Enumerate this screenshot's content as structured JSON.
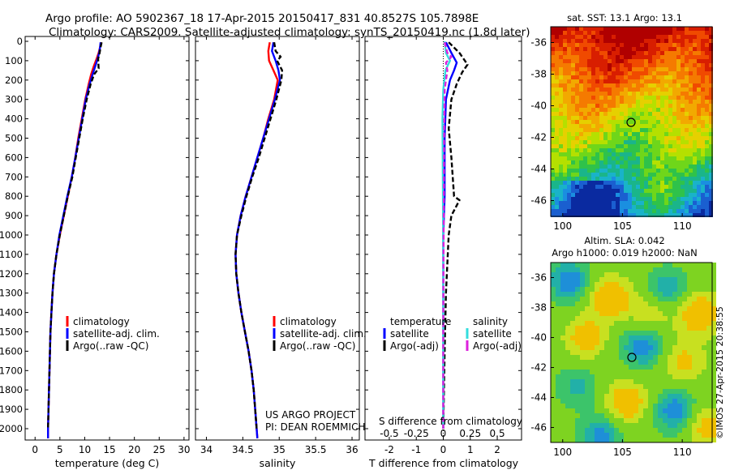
{
  "header": {
    "line1": "Argo profile: AO 5902367_18 17-Apr-2015 20150417_831 40.8527S 105.7898E",
    "line2": "Climatology: CARS2009. Satellite-adjusted climatology: synTS_20150419.nc (1.8d later)"
  },
  "colors": {
    "climatology": "#ff0000",
    "satellite": "#0000ff",
    "argo": "#000000",
    "sal_satellite": "#33dddd",
    "sal_argo": "#dd22dd"
  },
  "panel_text": {
    "project_line1": "US ARGO PROJECT",
    "project_line2": "PI: DEAN ROEMMICH",
    "sdiff_label": "S difference from climatology",
    "sat_sst_title": "sat. SST: 13.1  Argo: 13.1",
    "sla_title1": "Altim. SLA: 0.042",
    "sla_title2": "Argo h1000: 0.019 h2000: NaN",
    "credit": "©IMOS 27-Apr-2015 20:38:55"
  },
  "chart_data": [
    {
      "type": "line",
      "name": "temperature",
      "xlabel": "temperature (deg C)",
      "ylabel": "",
      "xlim": [
        -2,
        31
      ],
      "ylim": [
        2050,
        0
      ],
      "xticks": [
        0,
        5,
        10,
        15,
        20,
        25,
        30
      ],
      "yticks": [
        0,
        100,
        200,
        300,
        400,
        500,
        600,
        700,
        800,
        900,
        1000,
        1100,
        1200,
        1300,
        1400,
        1500,
        1600,
        1700,
        1800,
        1900,
        2000
      ],
      "legend": [
        "climatology",
        "satellite-adj. clim.",
        "Argo(..raw -QC)"
      ],
      "legend_position": "lower-center",
      "series": [
        {
          "name": "climatology",
          "color": "#ff0000",
          "dash": false,
          "points": [
            [
              13.3,
              5
            ],
            [
              13.1,
              30
            ],
            [
              12.8,
              60
            ],
            [
              12.4,
              90
            ],
            [
              11.8,
              130
            ],
            [
              11.3,
              170
            ],
            [
              10.8,
              220
            ],
            [
              10.1,
              300
            ],
            [
              9.4,
              400
            ],
            [
              8.7,
              500
            ],
            [
              8.1,
              600
            ],
            [
              7.4,
              700
            ],
            [
              6.6,
              800
            ],
            [
              5.8,
              900
            ],
            [
              5.0,
              1000
            ],
            [
              4.3,
              1100
            ],
            [
              3.8,
              1200
            ],
            [
              3.5,
              1300
            ],
            [
              3.3,
              1400
            ],
            [
              3.1,
              1500
            ],
            [
              3.0,
              1600
            ],
            [
              2.9,
              1700
            ],
            [
              2.8,
              1800
            ],
            [
              2.7,
              1900
            ],
            [
              2.6,
              2000
            ],
            [
              2.6,
              2050
            ]
          ]
        },
        {
          "name": "satellite-adj. clim.",
          "color": "#0000ff",
          "dash": false,
          "points": [
            [
              13.2,
              5
            ],
            [
              13.1,
              30
            ],
            [
              12.9,
              60
            ],
            [
              12.6,
              90
            ],
            [
              12.1,
              130
            ],
            [
              11.6,
              170
            ],
            [
              11.0,
              220
            ],
            [
              10.2,
              300
            ],
            [
              9.5,
              400
            ],
            [
              8.8,
              500
            ],
            [
              8.1,
              600
            ],
            [
              7.4,
              700
            ],
            [
              6.5,
              800
            ],
            [
              5.7,
              900
            ],
            [
              4.9,
              1000
            ],
            [
              4.3,
              1100
            ],
            [
              3.8,
              1200
            ],
            [
              3.5,
              1300
            ],
            [
              3.3,
              1400
            ],
            [
              3.1,
              1500
            ],
            [
              3.0,
              1600
            ],
            [
              2.9,
              1700
            ],
            [
              2.8,
              1800
            ],
            [
              2.7,
              1900
            ],
            [
              2.6,
              2000
            ],
            [
              2.6,
              2050
            ]
          ]
        },
        {
          "name": "Argo(..raw -QC)",
          "color": "#000000",
          "dash": true,
          "points": [
            [
              13.4,
              5
            ],
            [
              13.2,
              30
            ],
            [
              13.0,
              60
            ],
            [
              12.7,
              90
            ],
            [
              12.8,
              140
            ],
            [
              11.9,
              170
            ],
            [
              11.2,
              220
            ],
            [
              10.4,
              300
            ],
            [
              9.6,
              400
            ],
            [
              8.9,
              500
            ],
            [
              8.2,
              600
            ],
            [
              7.5,
              700
            ],
            [
              6.6,
              800
            ],
            [
              5.8,
              900
            ],
            [
              5.0,
              1000
            ],
            [
              4.3,
              1100
            ],
            [
              3.8,
              1200
            ],
            [
              3.5,
              1300
            ],
            [
              3.3,
              1400
            ],
            [
              3.1,
              1500
            ],
            [
              3.0,
              1600
            ],
            [
              2.9,
              1700
            ],
            [
              2.8,
              1800
            ],
            [
              2.7,
              1900
            ],
            [
              2.6,
              2000
            ]
          ]
        }
      ]
    },
    {
      "type": "line",
      "name": "salinity",
      "xlabel": "salinity",
      "ylabel": "",
      "xlim": [
        33.85,
        36.1
      ],
      "ylim": [
        2050,
        0
      ],
      "xticks": [
        34,
        34.5,
        35,
        35.5,
        36
      ],
      "legend": [
        "climatology",
        "satellite-adj. clim.",
        "Argo(..raw -QC)"
      ],
      "legend_position": "lower-center",
      "series": [
        {
          "name": "climatology",
          "color": "#ff0000",
          "dash": false,
          "points": [
            [
              34.87,
              5
            ],
            [
              34.85,
              50
            ],
            [
              34.86,
              100
            ],
            [
              34.92,
              150
            ],
            [
              34.98,
              200
            ],
            [
              34.93,
              300
            ],
            [
              34.85,
              400
            ],
            [
              34.78,
              500
            ],
            [
              34.7,
              600
            ],
            [
              34.62,
              700
            ],
            [
              34.54,
              800
            ],
            [
              34.47,
              900
            ],
            [
              34.42,
              1000
            ],
            [
              34.4,
              1100
            ],
            [
              34.41,
              1200
            ],
            [
              34.44,
              1300
            ],
            [
              34.48,
              1400
            ],
            [
              34.53,
              1500
            ],
            [
              34.58,
              1600
            ],
            [
              34.62,
              1700
            ],
            [
              34.65,
              1800
            ],
            [
              34.67,
              1900
            ],
            [
              34.69,
              2000
            ],
            [
              34.7,
              2050
            ]
          ]
        },
        {
          "name": "satellite-adj. clim.",
          "color": "#0000ff",
          "dash": false,
          "points": [
            [
              34.92,
              5
            ],
            [
              34.9,
              50
            ],
            [
              34.95,
              100
            ],
            [
              34.99,
              150
            ],
            [
              35.01,
              200
            ],
            [
              34.94,
              300
            ],
            [
              34.86,
              400
            ],
            [
              34.78,
              500
            ],
            [
              34.7,
              600
            ],
            [
              34.62,
              700
            ],
            [
              34.54,
              800
            ],
            [
              34.47,
              900
            ],
            [
              34.42,
              1000
            ],
            [
              34.4,
              1100
            ],
            [
              34.41,
              1200
            ],
            [
              34.44,
              1300
            ],
            [
              34.48,
              1400
            ],
            [
              34.53,
              1500
            ],
            [
              34.58,
              1600
            ],
            [
              34.62,
              1700
            ],
            [
              34.65,
              1800
            ],
            [
              34.67,
              1900
            ],
            [
              34.69,
              2000
            ],
            [
              34.7,
              2050
            ]
          ]
        },
        {
          "name": "Argo(..raw -QC)",
          "color": "#000000",
          "dash": true,
          "points": [
            [
              34.93,
              5
            ],
            [
              34.95,
              50
            ],
            [
              35.02,
              80
            ],
            [
              34.97,
              100
            ],
            [
              35.04,
              150
            ],
            [
              35.03,
              200
            ],
            [
              34.96,
              300
            ],
            [
              34.88,
              400
            ],
            [
              34.8,
              500
            ],
            [
              34.72,
              600
            ],
            [
              34.63,
              700
            ],
            [
              34.55,
              800
            ],
            [
              34.48,
              900
            ],
            [
              34.42,
              1000
            ],
            [
              34.4,
              1100
            ],
            [
              34.41,
              1200
            ],
            [
              34.44,
              1300
            ],
            [
              34.48,
              1400
            ],
            [
              34.53,
              1500
            ],
            [
              34.58,
              1600
            ],
            [
              34.62,
              1700
            ],
            [
              34.65,
              1800
            ],
            [
              34.67,
              1900
            ],
            [
              34.69,
              2000
            ]
          ]
        }
      ]
    },
    {
      "type": "line",
      "name": "difference",
      "xlabel": "T difference from climatology",
      "ylabel": "",
      "xlim": [
        -2.9,
        2.9
      ],
      "ylim": [
        2050,
        0
      ],
      "xticks": [
        -2,
        -1,
        0,
        1,
        2
      ],
      "secondary_xticks": [
        "-0.5",
        "-0.25",
        "0",
        "0.25",
        "0.5"
      ],
      "legend_titles": [
        "temperature",
        "salinity"
      ],
      "legend": [
        "satellite",
        "Argo(-adj)",
        "satellite",
        "Argo(-adj)"
      ],
      "legend_position": "lower-center",
      "series": [
        {
          "name": "temperature satellite",
          "color": "#0000ff",
          "dash": false,
          "points": [
            [
              0.1,
              5
            ],
            [
              0.3,
              60
            ],
            [
              0.5,
              110
            ],
            [
              0.4,
              150
            ],
            [
              0.25,
              200
            ],
            [
              0.1,
              300
            ],
            [
              0.05,
              500
            ],
            [
              0.05,
              800
            ],
            [
              0.0,
              1000
            ],
            [
              0.0,
              1500
            ],
            [
              0.0,
              2000
            ]
          ]
        },
        {
          "name": "temperature Argo(-adj)",
          "color": "#000000",
          "dash": true,
          "points": [
            [
              0.2,
              5
            ],
            [
              0.6,
              60
            ],
            [
              0.9,
              120
            ],
            [
              0.7,
              160
            ],
            [
              0.5,
              220
            ],
            [
              0.3,
              300
            ],
            [
              0.2,
              450
            ],
            [
              0.3,
              600
            ],
            [
              0.4,
              800
            ],
            [
              0.6,
              820
            ],
            [
              0.3,
              900
            ],
            [
              0.2,
              1000
            ],
            [
              0.1,
              1300
            ],
            [
              0.05,
              1600
            ],
            [
              0.0,
              2000
            ]
          ]
        },
        {
          "name": "salinity satellite",
          "color": "#33dddd",
          "dash": false,
          "points": [
            [
              0.05,
              0.1
            ],
            [
              0.1,
              60
            ],
            [
              0.25,
              100
            ],
            [
              0.08,
              150
            ],
            [
              0.0,
              250
            ],
            [
              -0.03,
              400
            ],
            [
              -0.02,
              600
            ],
            [
              -0.01,
              900
            ],
            [
              0.0,
              1200
            ],
            [
              0.0,
              2000
            ]
          ]
        },
        {
          "name": "salinity Argo(-adj)",
          "color": "#dd22dd",
          "dash": true,
          "points": [
            [
              0.05,
              5
            ],
            [
              0.15,
              60
            ],
            [
              0.3,
              80
            ],
            [
              0.1,
              110
            ],
            [
              0.15,
              150
            ],
            [
              0.05,
              250
            ],
            [
              0.03,
              500
            ],
            [
              0.02,
              800
            ],
            [
              0.01,
              1100
            ],
            [
              0.0,
              1500
            ],
            [
              0.0,
              2000
            ]
          ]
        }
      ]
    },
    {
      "type": "heatmap",
      "name": "satellite SST map",
      "title": "sat. SST: 13.1  Argo: 13.1",
      "xlim": [
        99,
        112.5
      ],
      "ylim": [
        -47,
        -35
      ],
      "xticks": [
        100,
        105,
        110
      ],
      "yticks": [
        -36,
        -38,
        -40,
        -42,
        -44,
        -46
      ],
      "marker": {
        "lon": 105.79,
        "lat": -40.85
      }
    },
    {
      "type": "heatmap",
      "name": "altimeter SLA map",
      "title": "Altim. SLA: 0.042",
      "xlim": [
        99,
        112.5
      ],
      "ylim": [
        -47,
        -35
      ],
      "xticks": [
        100,
        105,
        110
      ],
      "yticks": [
        -36,
        -38,
        -40,
        -42,
        -44,
        -46
      ],
      "marker": {
        "lon": 105.79,
        "lat": -40.85
      }
    }
  ]
}
